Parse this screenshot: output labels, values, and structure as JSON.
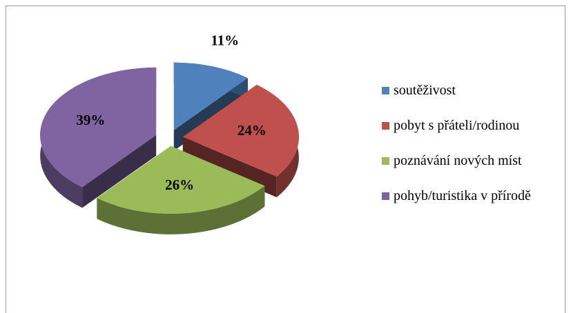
{
  "chart_data": {
    "type": "pie",
    "categories": [
      "soutěživost",
      "pobyt s přáteli/rodinou",
      "poznávání nových míst",
      "pohyb/turistika v přírodě"
    ],
    "values": [
      11,
      24,
      26,
      39
    ],
    "value_labels": [
      "11%",
      "24%",
      "26%",
      "39%"
    ],
    "colors": [
      "#4f81bd",
      "#c0504d",
      "#9bbb59",
      "#8064a2"
    ],
    "legend": "right"
  }
}
